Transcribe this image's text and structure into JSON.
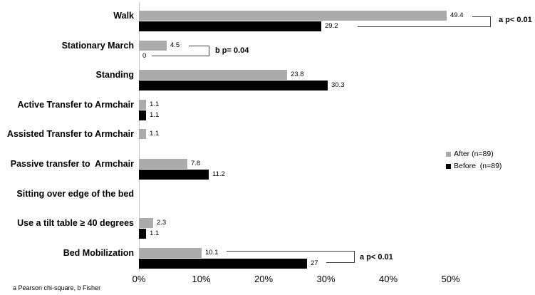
{
  "chart_data": {
    "type": "bar",
    "orientation": "horizontal",
    "categories": [
      "Walk",
      "Stationary March",
      "Standing",
      "Active Transfer to Armchair",
      "Assisted Transfer to Armchair",
      "Passive transfer to  Armchair",
      "Sitting over edge of the bed",
      "Use a tilt table ≥ 40 degrees",
      "Bed Mobilization"
    ],
    "series": [
      {
        "name": "After (n=89)",
        "color": "#ABABAB",
        "values": [
          49.4,
          4.5,
          23.8,
          1.1,
          1.1,
          7.8,
          null,
          2.3,
          10.1
        ],
        "labels": [
          "49.4",
          "4.5",
          "23.8",
          "1.1",
          "1.1",
          "7.8",
          "",
          "2.3",
          "10.1"
        ]
      },
      {
        "name": "Before  (n=89)",
        "color": "#000000",
        "values": [
          29.2,
          0,
          30.3,
          1.1,
          null,
          11.2,
          null,
          1.1,
          27
        ],
        "labels": [
          "29.2",
          "0",
          "30.3",
          "1.1",
          "",
          "11.2",
          "",
          "1.1",
          "27"
        ]
      }
    ],
    "x_ticks": [
      "0%",
      "10%",
      "20%",
      "30%",
      "40%",
      "50%"
    ],
    "xlim": [
      0,
      55
    ],
    "grid": false,
    "legend_position": "right",
    "annotations": [
      {
        "text": "a p< 0.01",
        "category": "Walk",
        "method": "a"
      },
      {
        "text": "b p= 0.04",
        "category": "Stationary March",
        "method": "b"
      },
      {
        "text": "a p< 0.01",
        "category": "Bed Mobilization",
        "method": "a"
      }
    ],
    "footnote": "a Pearson chi-square, b Fisher",
    "accent_colors": {
      "after_gray": "#ABABAB",
      "before_black": "#000000",
      "axis_gray": "#C6C6C6",
      "bracket_line": "#404040"
    }
  }
}
